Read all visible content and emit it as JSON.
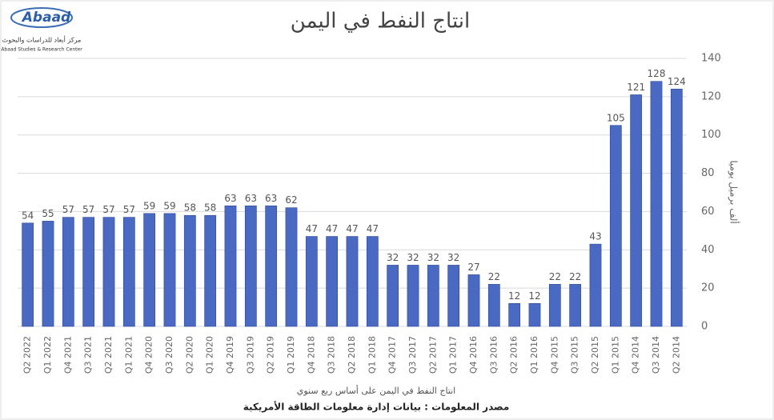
{
  "logo": {
    "name": "Abaad",
    "arabic_name": "مركز أبعاد للدراسات والبحوث",
    "english_name": "Abaad Studies & Research Center"
  },
  "chart_data": {
    "type": "bar",
    "title": "انتاج النفط في اليمن",
    "x_label": "انتاج النفط في اليمن على أساس ربع سنوي",
    "y_label": "ألف برميل يوميا",
    "source": "مصدر المعلومات : بيانات إدارة معلومات الطاقة الأمريكية",
    "categories": [
      "Q2 2022",
      "Q1 2022",
      "Q4 2021",
      "Q3 2021",
      "Q2 2021",
      "Q1 2021",
      "Q4 2020",
      "Q3 2020",
      "Q2 2020",
      "Q1 2020",
      "Q4 2019",
      "Q3 2019",
      "Q2 2019",
      "Q1 2019",
      "Q4 2018",
      "Q3 2018",
      "Q2 2018",
      "Q1 2018",
      "Q4 2017",
      "Q3 2017",
      "Q2 2017",
      "Q1 2017",
      "Q4 2016",
      "Q3 2016",
      "Q2 2016",
      "Q1 2016",
      "Q4 2015",
      "Q3 2015",
      "Q2 2015",
      "Q1 2015",
      "Q4 2014",
      "Q3 2014",
      "Q2 2014"
    ],
    "values": [
      54,
      55,
      57,
      57,
      57,
      57,
      59,
      59,
      58,
      58,
      63,
      63,
      63,
      62,
      47,
      47,
      47,
      47,
      32,
      32,
      32,
      32,
      27,
      22,
      12,
      12,
      22,
      22,
      43,
      105,
      121,
      128,
      124
    ],
    "color": "#4a69c2",
    "ylim": [
      0,
      140
    ],
    "yticks": [
      0,
      20,
      40,
      60,
      80,
      100,
      120,
      140
    ],
    "y_axis_side": "right",
    "grid": true
  }
}
